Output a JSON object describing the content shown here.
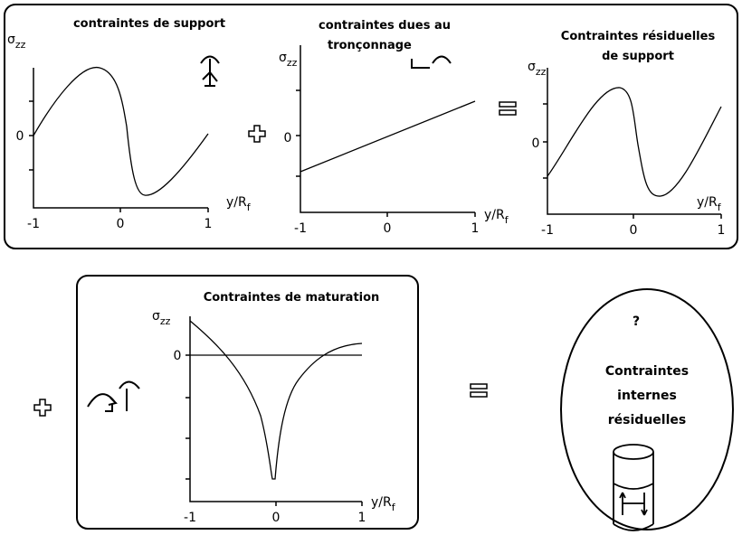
{
  "panels": [
    {
      "title": [
        "contraintes de support"
      ],
      "y_label": "σ",
      "y_label_sub": "zz",
      "x_label": "y/R",
      "x_label_sub": "f",
      "x_ticks": [
        "-1",
        "0",
        "1"
      ],
      "y_tick": "0"
    },
    {
      "title": [
        "contraintes dues au",
        "tronçonnage"
      ],
      "y_label": "σ",
      "y_label_sub": "zz",
      "x_label": "y/R",
      "x_label_sub": "f",
      "x_ticks": [
        "-1",
        "0",
        "1"
      ],
      "y_tick": "0"
    },
    {
      "title": [
        "Contraintes résiduelles",
        "de support"
      ],
      "y_label": "σ",
      "y_label_sub": "zz",
      "x_label": "y/R",
      "x_label_sub": "f",
      "x_ticks": [
        "-1",
        "0",
        "1"
      ],
      "y_tick": "0"
    },
    {
      "title": [
        "Contraintes de maturation"
      ],
      "y_label": "σ",
      "y_label_sub": "zz",
      "x_label": "y/R",
      "x_label_sub": "f",
      "x_ticks": [
        "-1",
        "0",
        "1"
      ],
      "y_tick": "0"
    }
  ],
  "result": {
    "mark": "?",
    "lines": [
      "Contraintes",
      "internes",
      "résiduelles"
    ]
  }
}
